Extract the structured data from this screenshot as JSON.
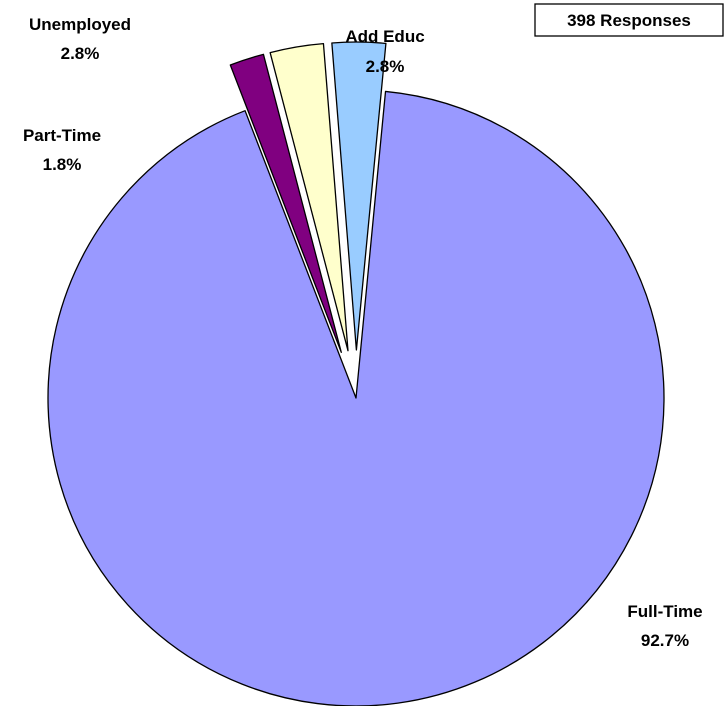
{
  "chart_data": {
    "type": "pie",
    "annotation": "398 Responses",
    "slices": [
      {
        "label": "Full-Time",
        "value": 92.7,
        "value_label": "92.7%",
        "color": "#9999ff",
        "exploded": false
      },
      {
        "label": "Part-Time",
        "value": 1.8,
        "value_label": "1.8%",
        "color": "#800080",
        "exploded": true
      },
      {
        "label": "Unemployed",
        "value": 2.8,
        "value_label": "2.8%",
        "color": "#ffffcc",
        "exploded": true
      },
      {
        "label": "Add Educ",
        "value": 2.8,
        "value_label": "2.8%",
        "color": "#99ccff",
        "exploded": true
      }
    ]
  }
}
